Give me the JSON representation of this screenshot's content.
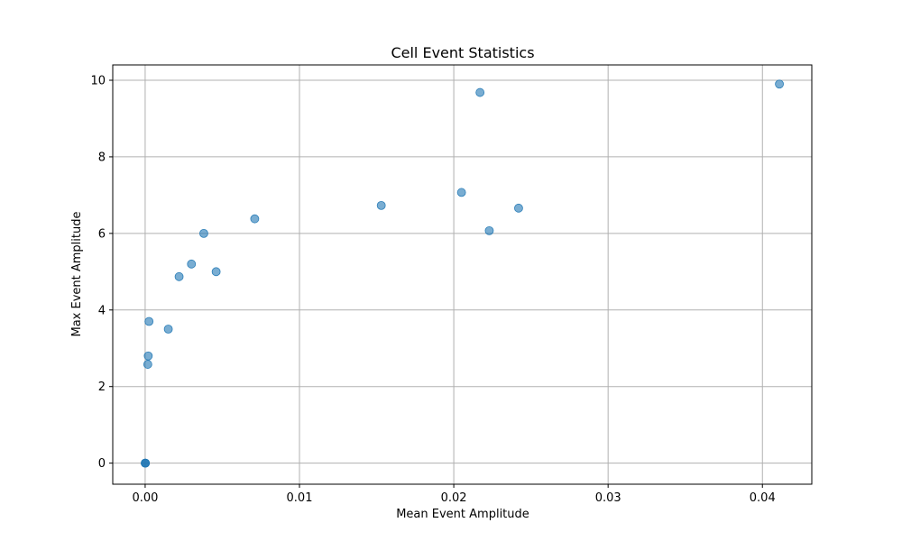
{
  "chart_data": {
    "type": "scatter",
    "title": "Cell Event Statistics",
    "xlabel": "Mean Event Amplitude",
    "ylabel": "Max Event Amplitude",
    "xlim": [
      -0.0021,
      0.0432
    ],
    "ylim": [
      -0.55,
      10.4
    ],
    "xticks": [
      0.0,
      0.01,
      0.02,
      0.03,
      0.04
    ],
    "xtick_labels": [
      "0.00",
      "0.01",
      "0.02",
      "0.03",
      "0.04"
    ],
    "yticks": [
      0,
      2,
      4,
      6,
      8,
      10
    ],
    "ytick_labels": [
      "0",
      "2",
      "4",
      "6",
      "8",
      "10"
    ],
    "grid": true,
    "marker_color": "#1f77b4",
    "marker_alpha": 0.6,
    "points": [
      {
        "x": 0.0,
        "y": 0.0
      },
      {
        "x": 1e-05,
        "y": 0.0
      },
      {
        "x": 2e-05,
        "y": 0.0
      },
      {
        "x": 0.00017,
        "y": 2.58
      },
      {
        "x": 0.0002,
        "y": 2.8
      },
      {
        "x": 0.00025,
        "y": 3.7
      },
      {
        "x": 0.0015,
        "y": 3.5
      },
      {
        "x": 0.0022,
        "y": 4.87
      },
      {
        "x": 0.003,
        "y": 5.2
      },
      {
        "x": 0.0038,
        "y": 6.0
      },
      {
        "x": 0.0046,
        "y": 5.0
      },
      {
        "x": 0.0071,
        "y": 6.38
      },
      {
        "x": 0.0153,
        "y": 6.73
      },
      {
        "x": 0.0205,
        "y": 7.07
      },
      {
        "x": 0.0217,
        "y": 9.68
      },
      {
        "x": 0.0223,
        "y": 6.07
      },
      {
        "x": 0.0242,
        "y": 6.66
      },
      {
        "x": 0.0411,
        "y": 9.9
      }
    ]
  }
}
